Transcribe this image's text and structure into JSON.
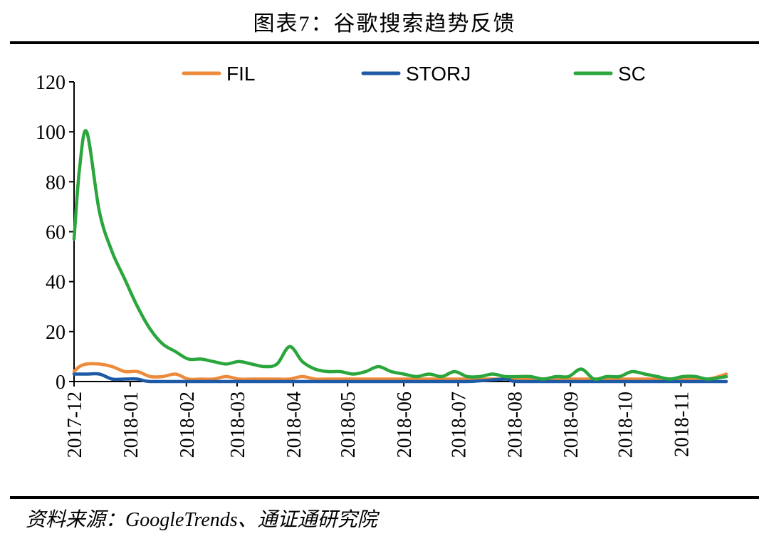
{
  "header": {
    "title": "图表7：谷歌搜索趋势反馈"
  },
  "footer": {
    "source": "资料来源：GoogleTrends、通证通研究院"
  },
  "chart_data": {
    "type": "line",
    "title": "图表7：谷歌搜索趋势反馈",
    "xlabel": "",
    "ylabel": "",
    "ylim": [
      0,
      120
    ],
    "yticks": [
      0,
      20,
      40,
      60,
      80,
      100,
      120
    ],
    "xlim": [
      "2017-12-01",
      "2018-11-26"
    ],
    "xticks": [
      "2017-12",
      "2018-01",
      "2018-02",
      "2018-03",
      "2018-04",
      "2018-05",
      "2018-06",
      "2018-07",
      "2018-08",
      "2018-09",
      "2018-10",
      "2018-11"
    ],
    "legend_position": "top",
    "grid": false,
    "series": [
      {
        "name": "FIL",
        "color": "#ED8B3A",
        "points": [
          [
            "2017-12-01",
            4
          ],
          [
            "2017-12-04",
            6
          ],
          [
            "2017-12-08",
            7
          ],
          [
            "2017-12-15",
            7
          ],
          [
            "2017-12-22",
            6
          ],
          [
            "2017-12-29",
            4
          ],
          [
            "2018-01-05",
            4
          ],
          [
            "2018-01-12",
            2
          ],
          [
            "2018-01-19",
            2
          ],
          [
            "2018-01-26",
            3
          ],
          [
            "2018-02-02",
            1
          ],
          [
            "2018-02-09",
            1
          ],
          [
            "2018-02-16",
            1
          ],
          [
            "2018-02-23",
            2
          ],
          [
            "2018-03-02",
            1
          ],
          [
            "2018-03-09",
            1
          ],
          [
            "2018-03-16",
            1
          ],
          [
            "2018-03-23",
            1
          ],
          [
            "2018-03-30",
            1
          ],
          [
            "2018-04-06",
            2
          ],
          [
            "2018-04-13",
            1
          ],
          [
            "2018-04-20",
            1
          ],
          [
            "2018-05-04",
            1
          ],
          [
            "2018-06-01",
            1
          ],
          [
            "2018-07-06",
            1
          ],
          [
            "2018-08-03",
            1
          ],
          [
            "2018-09-07",
            1
          ],
          [
            "2018-10-05",
            1
          ],
          [
            "2018-10-12",
            1
          ],
          [
            "2018-11-02",
            1
          ],
          [
            "2018-11-16",
            1
          ],
          [
            "2018-11-26",
            3
          ]
        ]
      },
      {
        "name": "STORJ",
        "color": "#1F5AA6",
        "points": [
          [
            "2017-12-01",
            3
          ],
          [
            "2017-12-08",
            3
          ],
          [
            "2017-12-15",
            3
          ],
          [
            "2017-12-22",
            1
          ],
          [
            "2017-12-29",
            1
          ],
          [
            "2018-01-05",
            1
          ],
          [
            "2018-01-12",
            0
          ],
          [
            "2018-02-02",
            0
          ],
          [
            "2018-03-02",
            0
          ],
          [
            "2018-04-06",
            0
          ],
          [
            "2018-05-04",
            0
          ],
          [
            "2018-06-01",
            0
          ],
          [
            "2018-07-06",
            0
          ],
          [
            "2018-07-27",
            1
          ],
          [
            "2018-08-03",
            0
          ],
          [
            "2018-09-07",
            0
          ],
          [
            "2018-10-05",
            0
          ],
          [
            "2018-11-02",
            0
          ],
          [
            "2018-11-26",
            0
          ]
        ]
      },
      {
        "name": "SC",
        "color": "#2AA63C",
        "points": [
          [
            "2017-12-01",
            57
          ],
          [
            "2017-12-04",
            85
          ],
          [
            "2017-12-08",
            100
          ],
          [
            "2017-12-15",
            68
          ],
          [
            "2017-12-22",
            52
          ],
          [
            "2017-12-29",
            41
          ],
          [
            "2018-01-05",
            30
          ],
          [
            "2018-01-12",
            21
          ],
          [
            "2018-01-19",
            15
          ],
          [
            "2018-01-26",
            12
          ],
          [
            "2018-02-02",
            9
          ],
          [
            "2018-02-09",
            9
          ],
          [
            "2018-02-16",
            8
          ],
          [
            "2018-02-23",
            7
          ],
          [
            "2018-03-02",
            8
          ],
          [
            "2018-03-09",
            7
          ],
          [
            "2018-03-16",
            6
          ],
          [
            "2018-03-23",
            7
          ],
          [
            "2018-03-30",
            14
          ],
          [
            "2018-04-06",
            8
          ],
          [
            "2018-04-13",
            5
          ],
          [
            "2018-04-20",
            4
          ],
          [
            "2018-04-27",
            4
          ],
          [
            "2018-05-04",
            3
          ],
          [
            "2018-05-11",
            4
          ],
          [
            "2018-05-18",
            6
          ],
          [
            "2018-05-25",
            4
          ],
          [
            "2018-06-01",
            3
          ],
          [
            "2018-06-08",
            2
          ],
          [
            "2018-06-15",
            3
          ],
          [
            "2018-06-22",
            2
          ],
          [
            "2018-06-29",
            4
          ],
          [
            "2018-07-06",
            2
          ],
          [
            "2018-07-13",
            2
          ],
          [
            "2018-07-20",
            3
          ],
          [
            "2018-07-27",
            2
          ],
          [
            "2018-08-03",
            2
          ],
          [
            "2018-08-10",
            2
          ],
          [
            "2018-08-17",
            1
          ],
          [
            "2018-08-24",
            2
          ],
          [
            "2018-08-31",
            2
          ],
          [
            "2018-09-07",
            5
          ],
          [
            "2018-09-14",
            1
          ],
          [
            "2018-09-21",
            2
          ],
          [
            "2018-09-28",
            2
          ],
          [
            "2018-10-05",
            4
          ],
          [
            "2018-10-12",
            3
          ],
          [
            "2018-10-19",
            2
          ],
          [
            "2018-10-26",
            1
          ],
          [
            "2018-11-02",
            2
          ],
          [
            "2018-11-09",
            2
          ],
          [
            "2018-11-16",
            1
          ],
          [
            "2018-11-26",
            2
          ]
        ]
      }
    ]
  }
}
